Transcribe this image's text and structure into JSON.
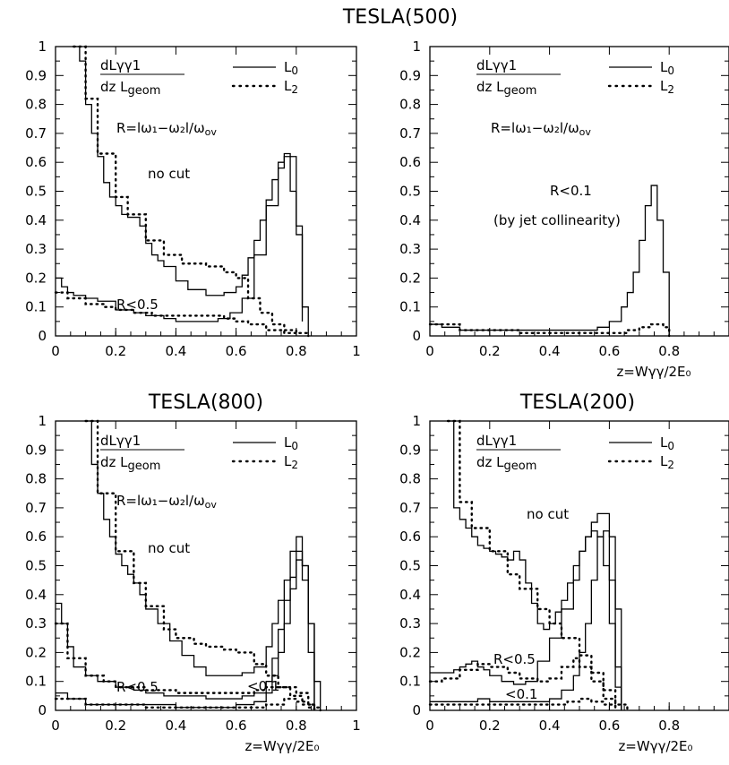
{
  "figure": {
    "panels": [
      {
        "title": "TESLA(500)",
        "xlabel": "",
        "legend": {
          "expr_num": "dLγγ1",
          "expr_den": "dz  L",
          "expr_sub": "geom",
          "l0": "L",
          "l0_sub": "0",
          "l2": "L",
          "l2_sub": "2"
        },
        "r_def": "R=lω₁−ω₂l/ω",
        "r_def_sub": "ov",
        "annotations": [
          "no cut",
          "R<0.5"
        ]
      },
      {
        "title": "",
        "xlabel": "z=Wγγ/2E₀",
        "legend": {
          "expr_num": "dLγγ1",
          "expr_den": "dz  L",
          "expr_sub": "geom",
          "l0": "L",
          "l0_sub": "0",
          "l2": "L",
          "l2_sub": "2"
        },
        "r_def": "R=lω₁−ω₂l/ω",
        "r_def_sub": "ov",
        "annotations": [
          "R<0.1",
          "(by jet collinearity)"
        ]
      },
      {
        "title": "TESLA(800)",
        "xlabel": "z=Wγγ/2E₀",
        "legend": {
          "expr_num": "dLγγ1",
          "expr_den": "dz  L",
          "expr_sub": "geom",
          "l0": "L",
          "l0_sub": "0",
          "l2": "L",
          "l2_sub": "2"
        },
        "r_def": "R=lω₁−ω₂l/ω",
        "r_def_sub": "ov",
        "annotations": [
          "no cut",
          "R<0.5",
          "<0.1"
        ]
      },
      {
        "title": "TESLA(200)",
        "xlabel": "z=Wγγ/2E₀",
        "legend": {
          "expr_num": "dLγγ1",
          "expr_den": "dz  L",
          "expr_sub": "geom",
          "l0": "L",
          "l0_sub": "0",
          "l2": "L",
          "l2_sub": "2"
        },
        "r_def": "",
        "r_def_sub": "",
        "annotations": [
          "no cut",
          "R<0.5",
          "<0.1"
        ]
      }
    ]
  },
  "chart_data": [
    {
      "type": "line",
      "title": "TESLA(500)",
      "xlim": [
        0,
        1
      ],
      "ylim": [
        0,
        1
      ],
      "xticks": [
        0,
        0.2,
        0.4,
        0.6,
        0.8,
        1
      ],
      "yticks": [
        0,
        0.1,
        0.2,
        0.3,
        0.4,
        0.5,
        0.6,
        0.7,
        0.8,
        0.9,
        1
      ],
      "x_tick_labels": [
        "0",
        "0.2",
        "0.4",
        "0.6",
        "0.8",
        "1"
      ],
      "y_tick_labels": [
        "0",
        "0.1",
        "0.2",
        "0.3",
        "0.4",
        "0.5",
        "0.6",
        "0.7",
        "0.8",
        "0.9",
        "1"
      ],
      "series": [
        {
          "name": "L0 no cut",
          "style": "solid",
          "x": [
            0.06,
            0.08,
            0.1,
            0.12,
            0.14,
            0.16,
            0.18,
            0.2,
            0.22,
            0.24,
            0.26,
            0.28,
            0.3,
            0.32,
            0.34,
            0.36,
            0.4,
            0.44,
            0.5,
            0.56,
            0.6,
            0.62,
            0.64,
            0.66,
            0.68,
            0.7,
            0.72,
            0.74,
            0.76,
            0.78,
            0.8,
            0.82,
            0.84
          ],
          "y": [
            1.0,
            0.95,
            0.8,
            0.7,
            0.62,
            0.53,
            0.48,
            0.45,
            0.42,
            0.41,
            0.41,
            0.38,
            0.32,
            0.28,
            0.26,
            0.24,
            0.19,
            0.16,
            0.14,
            0.15,
            0.17,
            0.21,
            0.27,
            0.33,
            0.4,
            0.47,
            0.54,
            0.6,
            0.63,
            0.5,
            0.35,
            0.1,
            0.0
          ]
        },
        {
          "name": "L2 no cut",
          "style": "dotted",
          "x": [
            0.06,
            0.1,
            0.14,
            0.2,
            0.24,
            0.3,
            0.36,
            0.42,
            0.5,
            0.56,
            0.6,
            0.64,
            0.68,
            0.72,
            0.76,
            0.8,
            0.84
          ],
          "y": [
            1.0,
            0.82,
            0.63,
            0.48,
            0.42,
            0.33,
            0.28,
            0.25,
            0.24,
            0.22,
            0.2,
            0.13,
            0.08,
            0.04,
            0.02,
            0.01,
            0.0
          ]
        },
        {
          "name": "L0 R<0.5",
          "style": "solid",
          "x": [
            0.0,
            0.02,
            0.04,
            0.06,
            0.1,
            0.14,
            0.2,
            0.26,
            0.3,
            0.36,
            0.4,
            0.46,
            0.5,
            0.54,
            0.58,
            0.62,
            0.66,
            0.7,
            0.74,
            0.76,
            0.8,
            0.82
          ],
          "y": [
            0.2,
            0.17,
            0.15,
            0.14,
            0.13,
            0.12,
            0.09,
            0.08,
            0.07,
            0.06,
            0.05,
            0.05,
            0.05,
            0.06,
            0.08,
            0.13,
            0.28,
            0.45,
            0.58,
            0.62,
            0.38,
            0.05
          ]
        },
        {
          "name": "L2 R<0.5",
          "style": "dotted",
          "x": [
            0.0,
            0.04,
            0.1,
            0.16,
            0.2,
            0.26,
            0.32,
            0.4,
            0.5,
            0.56,
            0.6,
            0.64,
            0.7,
            0.76,
            0.8
          ],
          "y": [
            0.15,
            0.13,
            0.11,
            0.1,
            0.09,
            0.08,
            0.07,
            0.07,
            0.07,
            0.06,
            0.05,
            0.04,
            0.02,
            0.01,
            0.0
          ]
        }
      ]
    },
    {
      "type": "line",
      "title": "",
      "xlabel": "z=Wγγ/2E₀",
      "xlim": [
        0,
        1
      ],
      "ylim": [
        0,
        1
      ],
      "xticks": [
        0,
        0.2,
        0.4,
        0.6,
        0.8
      ],
      "yticks": [
        0,
        0.1,
        0.2,
        0.3,
        0.4,
        0.5,
        0.6,
        0.7,
        0.8,
        0.9,
        1
      ],
      "x_tick_labels": [
        "0",
        "0.2",
        "0.4",
        "0.6",
        "0.8"
      ],
      "y_tick_labels": [
        "0",
        "0.1",
        "0.2",
        "0.3",
        "0.4",
        "0.5",
        "0.6",
        "0.7",
        "0.8",
        "0.9",
        "1"
      ],
      "series": [
        {
          "name": "L0 R<0.1",
          "style": "solid",
          "x": [
            0.0,
            0.04,
            0.1,
            0.2,
            0.3,
            0.4,
            0.5,
            0.56,
            0.6,
            0.64,
            0.66,
            0.68,
            0.7,
            0.72,
            0.74,
            0.76,
            0.78,
            0.8
          ],
          "y": [
            0.04,
            0.03,
            0.02,
            0.02,
            0.02,
            0.02,
            0.02,
            0.03,
            0.05,
            0.1,
            0.15,
            0.22,
            0.33,
            0.45,
            0.52,
            0.4,
            0.22,
            0.0
          ]
        },
        {
          "name": "L2 R<0.1",
          "style": "dotted",
          "x": [
            0.0,
            0.1,
            0.3,
            0.5,
            0.6,
            0.66,
            0.7,
            0.74,
            0.78,
            0.8
          ],
          "y": [
            0.04,
            0.02,
            0.01,
            0.01,
            0.01,
            0.02,
            0.03,
            0.04,
            0.03,
            0.0
          ]
        }
      ]
    },
    {
      "type": "line",
      "title": "TESLA(800)",
      "xlabel": "z=Wγγ/2E₀",
      "xlim": [
        0,
        1
      ],
      "ylim": [
        0,
        1
      ],
      "xticks": [
        0,
        0.2,
        0.4,
        0.6,
        0.8,
        1
      ],
      "yticks": [
        0,
        0.1,
        0.2,
        0.3,
        0.4,
        0.5,
        0.6,
        0.7,
        0.8,
        0.9,
        1
      ],
      "x_tick_labels": [
        "0",
        "0.2",
        "0.4",
        "0.6",
        "0.8",
        "1"
      ],
      "y_tick_labels": [
        "0",
        "0.1",
        "0.2",
        "0.3",
        "0.4",
        "0.5",
        "0.6",
        "0.7",
        "0.8",
        "0.9",
        "1"
      ],
      "series": [
        {
          "name": "L0 no cut",
          "style": "solid",
          "x": [
            0.1,
            0.12,
            0.14,
            0.16,
            0.18,
            0.2,
            0.22,
            0.24,
            0.26,
            0.28,
            0.3,
            0.34,
            0.38,
            0.42,
            0.46,
            0.5,
            0.56,
            0.62,
            0.66,
            0.7,
            0.72,
            0.74,
            0.76,
            0.78,
            0.8,
            0.82,
            0.84,
            0.86,
            0.88
          ],
          "y": [
            1.0,
            0.85,
            0.75,
            0.66,
            0.6,
            0.54,
            0.5,
            0.47,
            0.44,
            0.4,
            0.35,
            0.3,
            0.24,
            0.19,
            0.15,
            0.12,
            0.12,
            0.13,
            0.15,
            0.22,
            0.3,
            0.38,
            0.45,
            0.55,
            0.6,
            0.5,
            0.3,
            0.1,
            0.0
          ]
        },
        {
          "name": "L2 no cut",
          "style": "dotted",
          "x": [
            0.1,
            0.14,
            0.2,
            0.26,
            0.3,
            0.36,
            0.4,
            0.46,
            0.5,
            0.56,
            0.6,
            0.66,
            0.7,
            0.74,
            0.78,
            0.82,
            0.86,
            0.88
          ],
          "y": [
            1.0,
            0.75,
            0.55,
            0.44,
            0.36,
            0.28,
            0.25,
            0.23,
            0.22,
            0.21,
            0.2,
            0.16,
            0.12,
            0.08,
            0.05,
            0.02,
            0.01,
            0.0
          ]
        },
        {
          "name": "L0 R<0.5",
          "style": "solid",
          "x": [
            0.0,
            0.02,
            0.04,
            0.06,
            0.1,
            0.14,
            0.2,
            0.26,
            0.3,
            0.36,
            0.42,
            0.5,
            0.56,
            0.62,
            0.66,
            0.7,
            0.72,
            0.74,
            0.76,
            0.78,
            0.8,
            0.82,
            0.84,
            0.86
          ],
          "y": [
            0.37,
            0.3,
            0.22,
            0.15,
            0.12,
            0.1,
            0.08,
            0.07,
            0.06,
            0.05,
            0.05,
            0.04,
            0.04,
            0.05,
            0.06,
            0.1,
            0.18,
            0.28,
            0.38,
            0.46,
            0.52,
            0.5,
            0.3,
            0.0
          ]
        },
        {
          "name": "L2 R<0.5",
          "style": "dotted",
          "x": [
            0.0,
            0.04,
            0.1,
            0.16,
            0.2,
            0.3,
            0.4,
            0.5,
            0.6,
            0.66,
            0.7,
            0.76,
            0.8,
            0.84,
            0.86
          ],
          "y": [
            0.3,
            0.18,
            0.12,
            0.1,
            0.08,
            0.07,
            0.06,
            0.06,
            0.06,
            0.07,
            0.08,
            0.08,
            0.06,
            0.02,
            0.0
          ]
        },
        {
          "name": "L0 R<0.1",
          "style": "solid",
          "x": [
            0.0,
            0.04,
            0.1,
            0.2,
            0.3,
            0.4,
            0.5,
            0.6,
            0.66,
            0.7,
            0.72,
            0.74,
            0.76,
            0.78,
            0.8,
            0.82,
            0.84,
            0.86
          ],
          "y": [
            0.06,
            0.04,
            0.02,
            0.02,
            0.02,
            0.01,
            0.01,
            0.02,
            0.03,
            0.06,
            0.12,
            0.2,
            0.3,
            0.42,
            0.55,
            0.45,
            0.2,
            0.0
          ]
        },
        {
          "name": "L2 R<0.1",
          "style": "dotted",
          "x": [
            0.0,
            0.1,
            0.3,
            0.5,
            0.6,
            0.7,
            0.76,
            0.8,
            0.84,
            0.86
          ],
          "y": [
            0.04,
            0.02,
            0.01,
            0.01,
            0.01,
            0.02,
            0.04,
            0.03,
            0.01,
            0.0
          ]
        }
      ]
    },
    {
      "type": "line",
      "title": "TESLA(200)",
      "xlabel": "z=Wγγ/2E₀",
      "xlim": [
        0,
        1
      ],
      "ylim": [
        0,
        1
      ],
      "xticks": [
        0,
        0.2,
        0.4,
        0.6,
        0.8
      ],
      "yticks": [
        0,
        0.1,
        0.2,
        0.3,
        0.4,
        0.5,
        0.6,
        0.7,
        0.8,
        0.9,
        1
      ],
      "x_tick_labels": [
        "0",
        "0.2",
        "0.4",
        "0.6",
        "0.8"
      ],
      "y_tick_labels": [
        "0",
        "0.1",
        "0.2",
        "0.3",
        "0.4",
        "0.5",
        "0.6",
        "0.7",
        "0.8",
        "0.9",
        "1"
      ],
      "series": [
        {
          "name": "L0 no cut",
          "style": "solid",
          "x": [
            0.06,
            0.08,
            0.1,
            0.12,
            0.14,
            0.16,
            0.18,
            0.2,
            0.22,
            0.24,
            0.26,
            0.28,
            0.3,
            0.32,
            0.34,
            0.36,
            0.38,
            0.4,
            0.42,
            0.44,
            0.46,
            0.48,
            0.5,
            0.52,
            0.54,
            0.56,
            0.58,
            0.6,
            0.62,
            0.64
          ],
          "y": [
            1.0,
            0.7,
            0.66,
            0.63,
            0.6,
            0.57,
            0.56,
            0.55,
            0.54,
            0.53,
            0.52,
            0.55,
            0.52,
            0.44,
            0.37,
            0.3,
            0.28,
            0.3,
            0.34,
            0.38,
            0.44,
            0.5,
            0.55,
            0.6,
            0.65,
            0.68,
            0.68,
            0.6,
            0.35,
            0.0
          ]
        },
        {
          "name": "L2 no cut",
          "style": "dotted",
          "x": [
            0.06,
            0.1,
            0.14,
            0.2,
            0.26,
            0.3,
            0.36,
            0.4,
            0.44,
            0.5,
            0.54,
            0.58,
            0.62,
            0.66
          ],
          "y": [
            1.0,
            0.72,
            0.63,
            0.55,
            0.47,
            0.42,
            0.35,
            0.3,
            0.25,
            0.19,
            0.13,
            0.07,
            0.02,
            0.0
          ]
        },
        {
          "name": "L0 R<0.5",
          "style": "solid",
          "x": [
            0.0,
            0.04,
            0.08,
            0.1,
            0.12,
            0.14,
            0.16,
            0.18,
            0.2,
            0.24,
            0.28,
            0.32,
            0.36,
            0.4,
            0.44,
            0.48,
            0.5,
            0.52,
            0.54,
            0.56,
            0.58,
            0.6,
            0.62,
            0.64
          ],
          "y": [
            0.13,
            0.13,
            0.14,
            0.15,
            0.16,
            0.17,
            0.15,
            0.14,
            0.12,
            0.1,
            0.09,
            0.1,
            0.17,
            0.25,
            0.35,
            0.45,
            0.55,
            0.6,
            0.62,
            0.6,
            0.5,
            0.3,
            0.08,
            0.0
          ]
        },
        {
          "name": "L2 R<0.5",
          "style": "dotted",
          "x": [
            0.0,
            0.04,
            0.1,
            0.16,
            0.2,
            0.26,
            0.3,
            0.36,
            0.4,
            0.44,
            0.48,
            0.5,
            0.54,
            0.58,
            0.62
          ],
          "y": [
            0.1,
            0.11,
            0.14,
            0.16,
            0.15,
            0.13,
            0.11,
            0.1,
            0.11,
            0.15,
            0.18,
            0.15,
            0.1,
            0.04,
            0.0
          ]
        },
        {
          "name": "L0 R<0.1",
          "style": "solid",
          "x": [
            0.0,
            0.06,
            0.1,
            0.16,
            0.2,
            0.26,
            0.3,
            0.36,
            0.4,
            0.44,
            0.48,
            0.5,
            0.52,
            0.54,
            0.56,
            0.58,
            0.6,
            0.62,
            0.64
          ],
          "y": [
            0.03,
            0.03,
            0.03,
            0.04,
            0.03,
            0.03,
            0.03,
            0.03,
            0.04,
            0.07,
            0.12,
            0.2,
            0.3,
            0.45,
            0.6,
            0.62,
            0.45,
            0.15,
            0.0
          ]
        },
        {
          "name": "L2 R<0.1",
          "style": "dotted",
          "x": [
            0.0,
            0.1,
            0.2,
            0.3,
            0.4,
            0.46,
            0.5,
            0.54,
            0.58,
            0.62
          ],
          "y": [
            0.02,
            0.02,
            0.02,
            0.02,
            0.02,
            0.03,
            0.04,
            0.03,
            0.02,
            0.0
          ]
        }
      ]
    }
  ]
}
